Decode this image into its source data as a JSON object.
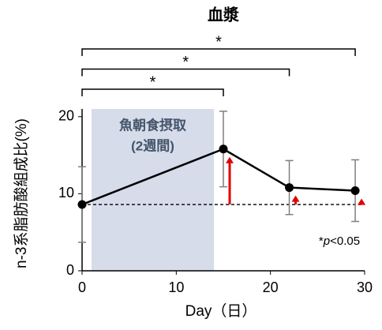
{
  "chart_data": {
    "type": "line",
    "title": "血漿",
    "x_label": "Day（日）",
    "y_label": "n-3系脂肪酸組成比(%)",
    "x": [
      0,
      15,
      22,
      29
    ],
    "values": [
      8.6,
      15.8,
      10.8,
      10.4
    ],
    "errors": [
      4.9,
      4.9,
      3.5,
      4.0
    ],
    "color": "#000000",
    "arrow_color": "#e00000",
    "xlim": [
      0,
      30
    ],
    "xticks": [
      0,
      10,
      20,
      30
    ],
    "ylim": [
      0,
      21
    ],
    "yticks": [
      0,
      10,
      20
    ],
    "shade": {
      "x": [
        1,
        14
      ],
      "color": "#d6dcea",
      "lines": [
        "魚朝食摂取",
        "(2週間)"
      ]
    },
    "brackets": [
      {
        "to": 29,
        "label": "*"
      },
      {
        "to": 22,
        "label": "*"
      },
      {
        "to": 15,
        "label": "*"
      }
    ],
    "note": {
      "star": "*",
      "p": "p",
      "rest": "<0.05"
    }
  }
}
